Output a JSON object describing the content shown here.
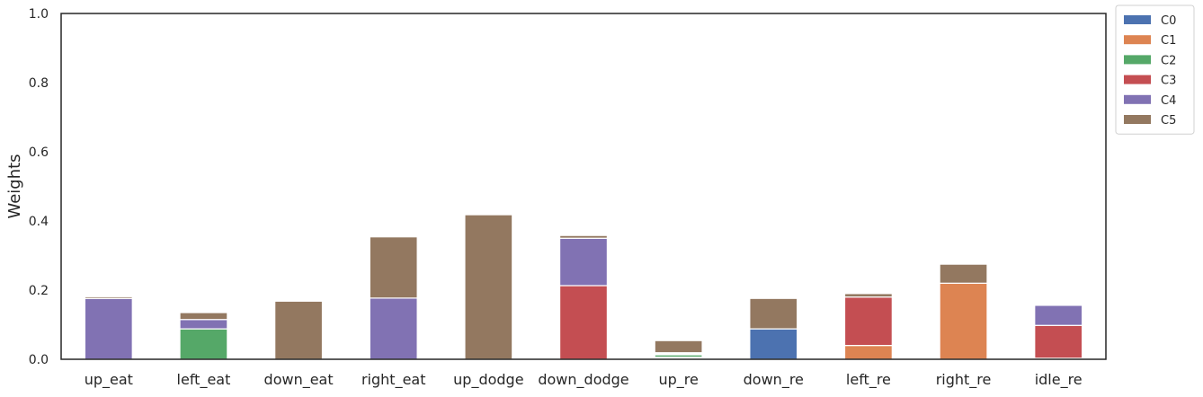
{
  "chart_data": {
    "type": "bar",
    "stacked": true,
    "ylabel": "Weights",
    "xlabel": "",
    "ylim": [
      0,
      1
    ],
    "yticks": [
      "0.0",
      "0.2",
      "0.4",
      "0.6",
      "0.8",
      "1.0"
    ],
    "categories": [
      "up_eat",
      "left_eat",
      "down_eat",
      "right_eat",
      "up_dodge",
      "down_dodge",
      "up_re",
      "down_re",
      "left_re",
      "right_re",
      "idle_re"
    ],
    "series": [
      {
        "name": "C0",
        "color": "#4c72b0",
        "values": [
          0,
          0,
          0,
          0,
          0,
          0,
          0.003,
          0.088,
          0,
          0,
          0.003
        ]
      },
      {
        "name": "C1",
        "color": "#dd8452",
        "values": [
          0,
          0,
          0,
          0,
          0,
          0,
          0.003,
          0,
          0.04,
          0.22,
          0
        ]
      },
      {
        "name": "C2",
        "color": "#55a868",
        "values": [
          0,
          0.088,
          0,
          0,
          0,
          0,
          0.007,
          0,
          0,
          0,
          0
        ]
      },
      {
        "name": "C3",
        "color": "#c44e52",
        "values": [
          0,
          0,
          0,
          0,
          0,
          0.213,
          0.003,
          0,
          0.14,
          0,
          0.095
        ]
      },
      {
        "name": "C4",
        "color": "#8172b3",
        "values": [
          0.176,
          0.027,
          0,
          0.177,
          0,
          0.137,
          0.003,
          0,
          0,
          0,
          0.058
        ]
      },
      {
        "name": "C5",
        "color": "#937860",
        "values": [
          0.005,
          0.02,
          0.168,
          0.177,
          0.418,
          0.008,
          0.035,
          0.088,
          0.01,
          0.055,
          0
        ]
      }
    ],
    "legend": {
      "placement": "outside-top-right",
      "entries": [
        "C0",
        "C1",
        "C2",
        "C3",
        "C4",
        "C5"
      ]
    },
    "grid": false
  }
}
